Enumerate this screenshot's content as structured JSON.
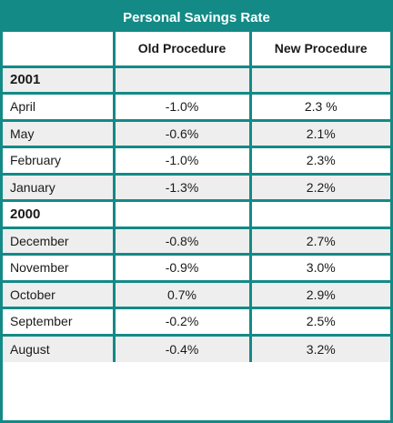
{
  "chart_data": {
    "type": "table",
    "title": "Personal Savings Rate",
    "columns": [
      "",
      "Old Procedure",
      "New Procedure"
    ],
    "groups": [
      {
        "year": "2001",
        "rows": [
          {
            "month": "April",
            "old": "-1.0%",
            "new": "2.3 %"
          },
          {
            "month": "May",
            "old": "-0.6%",
            "new": "2.1%"
          },
          {
            "month": "February",
            "old": "-1.0%",
            "new": "2.3%"
          },
          {
            "month": "January",
            "old": "-1.3%",
            "new": "2.2%"
          }
        ]
      },
      {
        "year": "2000",
        "rows": [
          {
            "month": "December",
            "old": "-0.8%",
            "new": "2.7%"
          },
          {
            "month": "November",
            "old": "-0.9%",
            "new": "3.0%"
          },
          {
            "month": "October",
            "old": "0.7%",
            "new": "2.9%"
          },
          {
            "month": "September",
            "old": "-0.2%",
            "new": "2.5%"
          },
          {
            "month": "August",
            "old": "-0.4%",
            "new": "3.2%"
          }
        ]
      }
    ]
  },
  "colors": {
    "header": "#138a86",
    "grid": "#138a86",
    "shade": "#eeeeee"
  }
}
